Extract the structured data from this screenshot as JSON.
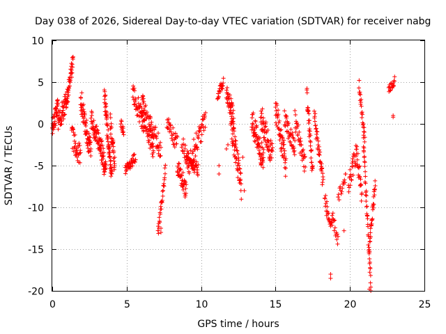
{
  "chart_data": {
    "type": "scatter",
    "title": "Day 038 of 2026, Sidereal Day-to-day VTEC variation (SDTVAR) for receiver nabg",
    "xlabel": "GPS time / hours",
    "ylabel": "SDTVAR / TECUs",
    "xlim": [
      0,
      25
    ],
    "ylim": [
      -20,
      10
    ],
    "x_ticks": [
      0,
      5,
      10,
      15,
      20,
      25
    ],
    "x_tick_labels": [
      "0",
      "5",
      "10",
      "15",
      "20",
      "25"
    ],
    "y_ticks": [
      -20,
      -15,
      -10,
      -5,
      0,
      5,
      10
    ],
    "y_tick_labels": [
      "-20",
      "-15",
      "-10",
      "-5",
      "0",
      "5",
      "10"
    ],
    "grid": true,
    "marker": "plus",
    "color": "#ff0000",
    "series": [
      {
        "name": "SDTVAR",
        "segments": [
          {
            "x0": 0.0,
            "x1": 0.4,
            "y0": -0.5,
            "y1": 2.0,
            "n": 40,
            "noise": 1.2
          },
          {
            "x0": 0.4,
            "x1": 0.9,
            "y0": 0.0,
            "y1": 2.5,
            "n": 40,
            "noise": 1.3
          },
          {
            "x0": 0.9,
            "x1": 1.4,
            "y0": 2.0,
            "y1": 7.5,
            "n": 45,
            "noise": 1.0
          },
          {
            "x0": 1.3,
            "x1": 1.9,
            "y0": -1.5,
            "y1": -4.0,
            "n": 35,
            "noise": 1.3
          },
          {
            "x0": 1.9,
            "x1": 2.6,
            "y0": 3.0,
            "y1": -3.5,
            "n": 60,
            "noise": 1.5
          },
          {
            "x0": 2.6,
            "x1": 3.2,
            "y0": 0.5,
            "y1": -2.5,
            "n": 45,
            "noise": 1.2
          },
          {
            "x0": 3.2,
            "x1": 3.6,
            "y0": -2.0,
            "y1": -6.0,
            "n": 40,
            "noise": 1.4
          },
          {
            "x0": 3.5,
            "x1": 4.0,
            "y0": 3.5,
            "y1": -6.5,
            "n": 60,
            "noise": 1.4
          },
          {
            "x0": 3.9,
            "x1": 4.2,
            "y0": 0.0,
            "y1": -5.0,
            "n": 30,
            "noise": 1.2
          },
          {
            "x0": 4.6,
            "x1": 4.8,
            "y0": 0.2,
            "y1": -1.0,
            "n": 12,
            "noise": 0.5
          },
          {
            "x0": 4.9,
            "x1": 5.6,
            "y0": -5.5,
            "y1": -4.0,
            "n": 35,
            "noise": 0.6
          },
          {
            "x0": 5.4,
            "x1": 6.2,
            "y0": 3.5,
            "y1": 0.0,
            "n": 45,
            "noise": 1.3
          },
          {
            "x0": 6.0,
            "x1": 6.8,
            "y0": 2.5,
            "y1": -3.0,
            "n": 60,
            "noise": 1.6
          },
          {
            "x0": 6.5,
            "x1": 7.3,
            "y0": 0.0,
            "y1": -3.0,
            "n": 40,
            "noise": 1.3
          },
          {
            "x0": 7.1,
            "x1": 7.6,
            "y0": -13.0,
            "y1": -5.5,
            "n": 30,
            "noise": 0.8
          },
          {
            "x0": 7.7,
            "x1": 8.4,
            "y0": 0.0,
            "y1": -2.5,
            "n": 30,
            "noise": 1.0
          },
          {
            "x0": 8.4,
            "x1": 9.0,
            "y0": -5.0,
            "y1": -8.0,
            "n": 40,
            "noise": 1.2
          },
          {
            "x0": 8.7,
            "x1": 9.2,
            "y0": -2.0,
            "y1": -5.0,
            "n": 20,
            "noise": 1.0
          },
          {
            "x0": 9.0,
            "x1": 9.8,
            "y0": -4.0,
            "y1": -5.5,
            "n": 45,
            "noise": 0.8
          },
          {
            "x0": 9.3,
            "x1": 10.3,
            "y0": -4.0,
            "y1": 0.5,
            "n": 45,
            "noise": 1.3
          },
          {
            "x0": 11.1,
            "x1": 11.5,
            "y0": 3.5,
            "y1": 5.0,
            "n": 20,
            "noise": 0.6
          },
          {
            "x0": 11.7,
            "x1": 12.2,
            "y0": 4.0,
            "y1": 0.5,
            "n": 40,
            "noise": 1.2
          },
          {
            "x0": 12.0,
            "x1": 12.7,
            "y0": 0.0,
            "y1": -7.5,
            "n": 55,
            "noise": 1.6
          },
          {
            "x0": 13.4,
            "x1": 14.2,
            "y0": 0.5,
            "y1": -4.5,
            "n": 65,
            "noise": 1.5
          },
          {
            "x0": 14.0,
            "x1": 14.8,
            "y0": 1.0,
            "y1": -4.0,
            "n": 55,
            "noise": 1.6
          },
          {
            "x0": 15.0,
            "x1": 15.7,
            "y0": 2.0,
            "y1": -5.0,
            "n": 50,
            "noise": 1.6
          },
          {
            "x0": 15.6,
            "x1": 16.3,
            "y0": 0.5,
            "y1": -3.0,
            "n": 40,
            "noise": 1.2
          },
          {
            "x0": 16.3,
            "x1": 17.0,
            "y0": 0.5,
            "y1": -5.0,
            "n": 35,
            "noise": 1.3
          },
          {
            "x0": 17.1,
            "x1": 17.5,
            "y0": 3.5,
            "y1": -6.0,
            "n": 35,
            "noise": 1.2
          },
          {
            "x0": 17.6,
            "x1": 18.2,
            "y0": 1.0,
            "y1": -7.0,
            "n": 40,
            "noise": 1.2
          },
          {
            "x0": 18.3,
            "x1": 18.8,
            "y0": -9.0,
            "y1": -13.0,
            "n": 25,
            "noise": 1.0
          },
          {
            "x0": 18.8,
            "x1": 19.2,
            "y0": -11.0,
            "y1": -14.0,
            "n": 15,
            "noise": 0.8
          },
          {
            "x0": 19.2,
            "x1": 19.7,
            "y0": -9.0,
            "y1": -7.0,
            "n": 15,
            "noise": 1.0
          },
          {
            "x0": 19.9,
            "x1": 20.4,
            "y0": -7.5,
            "y1": -3.5,
            "n": 25,
            "noise": 1.2
          },
          {
            "x0": 20.4,
            "x1": 20.8,
            "y0": -3.0,
            "y1": -8.5,
            "n": 25,
            "noise": 1.3
          },
          {
            "x0": 20.6,
            "x1": 21.0,
            "y0": 4.8,
            "y1": -2.0,
            "n": 25,
            "noise": 0.8
          },
          {
            "x0": 20.9,
            "x1": 21.4,
            "y0": -2.0,
            "y1": -19.5,
            "n": 45,
            "noise": 1.0
          },
          {
            "x0": 21.3,
            "x1": 21.7,
            "y0": -15.0,
            "y1": -7.0,
            "n": 30,
            "noise": 0.9
          },
          {
            "x0": 22.6,
            "x1": 23.0,
            "y0": 4.0,
            "y1": 5.2,
            "n": 20,
            "noise": 0.5
          }
        ],
        "points": [
          {
            "x": 18.7,
            "y": -18.0
          },
          {
            "x": 18.7,
            "y": -18.5
          },
          {
            "x": 19.6,
            "y": -12.8
          },
          {
            "x": 11.2,
            "y": -5.0
          },
          {
            "x": 11.2,
            "y": -6.0
          },
          {
            "x": 11.7,
            "y": -3.0
          },
          {
            "x": 11.8,
            "y": -2.5
          },
          {
            "x": 12.3,
            "y": -2.0
          },
          {
            "x": 12.8,
            "y": -4.0
          },
          {
            "x": 12.9,
            "y": -8.0
          },
          {
            "x": 22.9,
            "y": 1.0
          },
          {
            "x": 22.9,
            "y": 0.8
          },
          {
            "x": 7.3,
            "y": -12.5
          },
          {
            "x": 7.3,
            "y": -13.0
          },
          {
            "x": 21.4,
            "y": -20.0
          },
          {
            "x": 21.3,
            "y": -19.8
          },
          {
            "x": 15.0,
            "y": 2.0
          },
          {
            "x": 10.1,
            "y": 0.5
          },
          {
            "x": 19.7,
            "y": -6.0
          },
          {
            "x": 20.2,
            "y": -4.5
          }
        ]
      }
    ]
  }
}
